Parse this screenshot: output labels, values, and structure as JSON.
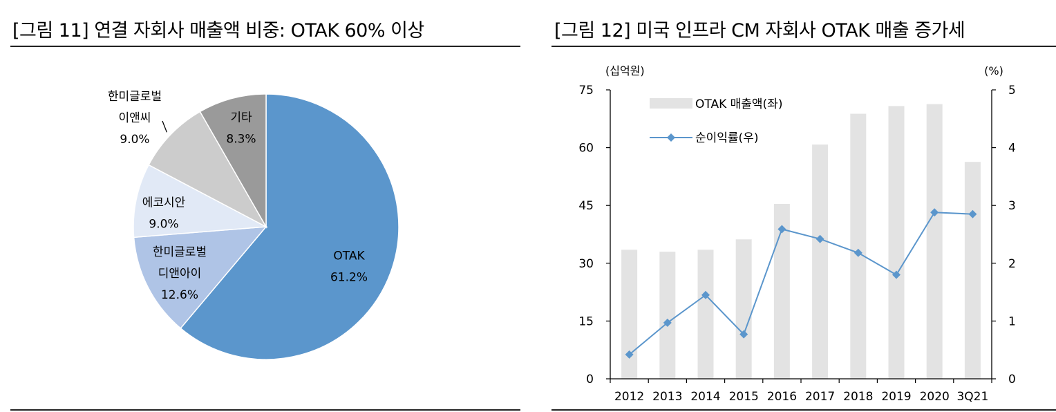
{
  "left": {
    "title": "[그림 11] 연결 자회사 매출액 비중: OTAK 60% 이상",
    "chart_data": {
      "type": "pie",
      "slices": [
        {
          "name": "OTAK",
          "label_lines": [
            "OTAK"
          ],
          "value": 61.2,
          "value_label": "61.2%",
          "color": "#5b96cc",
          "label_color": "#000000"
        },
        {
          "name": "한미글로벌 디앤아이",
          "label_lines": [
            "한미글로벌",
            "디앤아이"
          ],
          "value": 12.6,
          "value_label": "12.6%",
          "color": "#afc4e6",
          "label_color": "#000000"
        },
        {
          "name": "에코시안",
          "label_lines": [
            "에코시안"
          ],
          "value": 9.0,
          "value_label": "9.0%",
          "color": "#e1e9f6",
          "label_color": "#000000"
        },
        {
          "name": "한미글로벌 이앤씨",
          "label_lines": [
            "한미글로벌",
            "이앤씨"
          ],
          "value": 9.0,
          "value_label": "9.0%",
          "color": "#cccccc",
          "label_color": "#000000"
        },
        {
          "name": "기타",
          "label_lines": [
            "기타"
          ],
          "value": 8.3,
          "value_label": "8.3%",
          "color": "#9a9a9a",
          "label_color": "#000000"
        }
      ]
    }
  },
  "right": {
    "title": "[그림 12] 미국 인프라 CM 자회사 OTAK 매출 증가세",
    "chart_data": {
      "type": "bar",
      "categories": [
        "2012",
        "2013",
        "2014",
        "2015",
        "2016",
        "2017",
        "2018",
        "2019",
        "2020",
        "3Q21"
      ],
      "series": [
        {
          "name": "OTAK 매출액(좌)",
          "type": "bar",
          "axis": "left",
          "color": "#e3e3e3",
          "values": [
            33.5,
            33.0,
            33.5,
            36.2,
            45.4,
            60.8,
            68.8,
            70.8,
            71.3,
            56.3
          ]
        },
        {
          "name": "순이익률(우)",
          "type": "line",
          "axis": "right",
          "color": "#5b96cc",
          "values": [
            0.42,
            0.97,
            1.45,
            0.77,
            2.59,
            2.42,
            2.18,
            1.8,
            2.88,
            2.85
          ]
        }
      ],
      "ylabel_left": "(십억원)",
      "ylabel_right": "(%)",
      "ylim_left": [
        0,
        75
      ],
      "ylim_right": [
        0,
        5
      ],
      "yticks_left": [
        0,
        15,
        30,
        45,
        60,
        75
      ],
      "yticks_right": [
        0,
        1,
        2,
        3,
        4,
        5
      ],
      "grid": false,
      "legend_position": "top-left"
    }
  }
}
